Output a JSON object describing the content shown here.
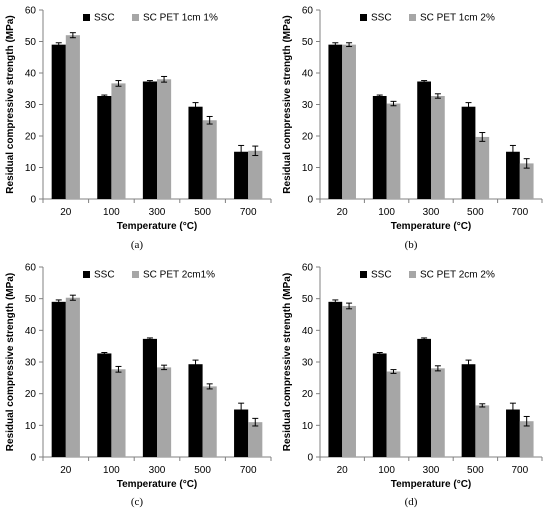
{
  "colors": {
    "ssc": "#000000",
    "pet": "#a6a6a6",
    "axis": "#808080"
  },
  "chart_data": [
    {
      "type": "bar",
      "caption": "(a)",
      "categories": [
        "20",
        "100",
        "300",
        "500",
        "700"
      ],
      "xlabel": "Temperature (°C)",
      "ylabel": "Residual compressive strength  (MPa)",
      "ylim": [
        0,
        60
      ],
      "yticks": [
        0,
        10,
        20,
        30,
        40,
        50,
        60
      ],
      "legend": "top-left",
      "grid": false,
      "series": [
        {
          "name": "SSC",
          "color": "#000000",
          "values": [
            49,
            32.7,
            37.3,
            29.3,
            15
          ],
          "errors": [
            0.6,
            0.3,
            0.3,
            1.3,
            2.0
          ]
        },
        {
          "name": "SC PET 1cm 1%",
          "color": "#a6a6a6",
          "values": [
            52,
            36.7,
            38,
            25,
            15.3
          ],
          "errors": [
            0.8,
            0.9,
            0.9,
            1.2,
            1.5
          ]
        }
      ]
    },
    {
      "type": "bar",
      "caption": "(b)",
      "categories": [
        "20",
        "100",
        "300",
        "500",
        "700"
      ],
      "xlabel": "Temperature (°C)",
      "ylabel": "Residual compressive strength  (MPa)",
      "ylim": [
        0,
        60
      ],
      "yticks": [
        0,
        10,
        20,
        30,
        40,
        50,
        60
      ],
      "legend": "top-left",
      "grid": false,
      "series": [
        {
          "name": "SSC",
          "color": "#000000",
          "values": [
            49,
            32.7,
            37.3,
            29.3,
            15
          ],
          "errors": [
            0.6,
            0.3,
            0.3,
            1.3,
            2.0
          ]
        },
        {
          "name": "SC PET 1cm 2%",
          "color": "#a6a6a6",
          "values": [
            49,
            30.3,
            32.7,
            19.7,
            11.3
          ],
          "errors": [
            0.6,
            0.7,
            0.7,
            1.4,
            1.5
          ]
        }
      ]
    },
    {
      "type": "bar",
      "caption": "(c)",
      "categories": [
        "20",
        "100",
        "300",
        "500",
        "700"
      ],
      "xlabel": "Temperature (°C)",
      "ylabel": "Residual compressive strength  (MPa)",
      "ylim": [
        0,
        60
      ],
      "yticks": [
        0,
        10,
        20,
        30,
        40,
        50,
        60
      ],
      "legend": "top-left",
      "grid": false,
      "series": [
        {
          "name": "SSC",
          "color": "#000000",
          "values": [
            49,
            32.7,
            37.3,
            29.3,
            15
          ],
          "errors": [
            0.6,
            0.3,
            0.3,
            1.3,
            2.0
          ]
        },
        {
          "name": "SC PET 2cm1%",
          "color": "#a6a6a6",
          "values": [
            50.3,
            27.7,
            28.3,
            22.3,
            11
          ],
          "errors": [
            0.8,
            0.9,
            0.7,
            0.8,
            1.2
          ]
        }
      ]
    },
    {
      "type": "bar",
      "caption": "(d)",
      "categories": [
        "20",
        "100",
        "300",
        "500",
        "700"
      ],
      "xlabel": "Temperature (°C)",
      "ylabel": "Residual compressive strength  (MPa)",
      "ylim": [
        0,
        60
      ],
      "yticks": [
        0,
        10,
        20,
        30,
        40,
        50,
        60
      ],
      "legend": "top-left",
      "grid": false,
      "series": [
        {
          "name": "SSC",
          "color": "#000000",
          "values": [
            49,
            32.7,
            37.3,
            29.3,
            15
          ],
          "errors": [
            0.6,
            0.3,
            0.3,
            1.3,
            2.0
          ]
        },
        {
          "name": "SC PET 2cm 2%",
          "color": "#a6a6a6",
          "values": [
            47.7,
            27,
            28,
            16.3,
            11.3
          ],
          "errors": [
            0.9,
            0.6,
            0.8,
            0.5,
            1.5
          ]
        }
      ]
    }
  ]
}
